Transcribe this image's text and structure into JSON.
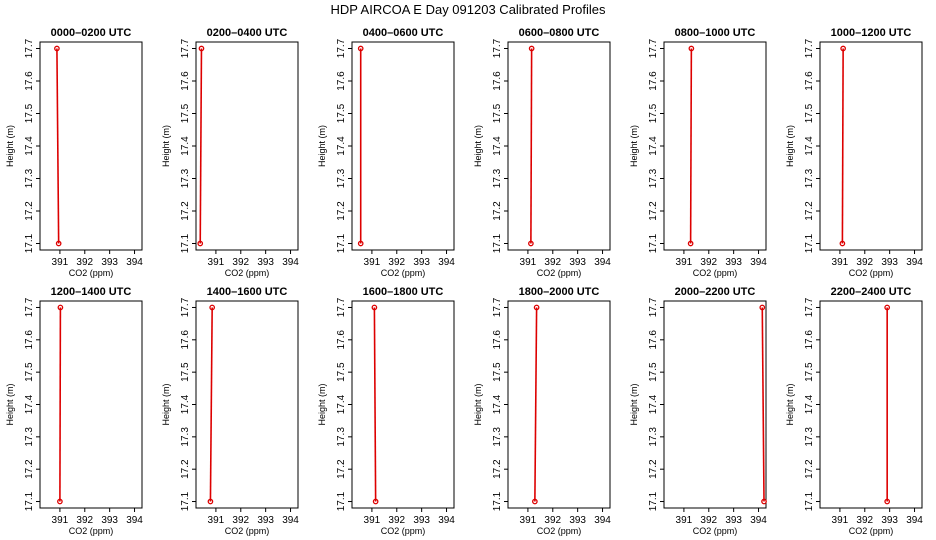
{
  "title": "HDP AIRCOA E  Day 091203  Calibrated Profiles",
  "colors": {
    "profile": "#dd0000",
    "axis": "#000000"
  },
  "chart_data": {
    "type": "line",
    "xlabel": "CO2 (ppm)",
    "ylabel": "Height (m)",
    "xlim": [
      390.2,
      394.3
    ],
    "ylim": [
      17.08,
      17.72
    ],
    "xticks": [
      "391",
      "392",
      "393",
      "394"
    ],
    "yticks": [
      "17.1",
      "17.2",
      "17.3",
      "17.4",
      "17.5",
      "17.6",
      "17.7"
    ],
    "grid": false,
    "panels": [
      {
        "title": "0000–0200 UTC",
        "points": [
          [
            390.88,
            17.7
          ],
          [
            390.95,
            17.1
          ]
        ]
      },
      {
        "title": "0200–0400 UTC",
        "points": [
          [
            390.42,
            17.7
          ],
          [
            390.37,
            17.1
          ]
        ]
      },
      {
        "title": "0400–0600 UTC",
        "points": [
          [
            390.55,
            17.7
          ],
          [
            390.55,
            17.1
          ]
        ]
      },
      {
        "title": "0600–0800 UTC",
        "points": [
          [
            391.15,
            17.7
          ],
          [
            391.12,
            17.1
          ]
        ]
      },
      {
        "title": "0800–1000 UTC",
        "points": [
          [
            391.3,
            17.7
          ],
          [
            391.27,
            17.1
          ]
        ]
      },
      {
        "title": "1000–1200 UTC",
        "points": [
          [
            391.13,
            17.7
          ],
          [
            391.1,
            17.1
          ]
        ]
      },
      {
        "title": "1200–1400 UTC",
        "points": [
          [
            391.02,
            17.7
          ],
          [
            391.0,
            17.1
          ]
        ]
      },
      {
        "title": "1400–1600 UTC",
        "points": [
          [
            390.85,
            17.7
          ],
          [
            390.78,
            17.1
          ]
        ]
      },
      {
        "title": "1600–1800 UTC",
        "points": [
          [
            391.1,
            17.7
          ],
          [
            391.15,
            17.1
          ]
        ]
      },
      {
        "title": "1800–2000 UTC",
        "points": [
          [
            391.35,
            17.7
          ],
          [
            391.28,
            17.1
          ]
        ]
      },
      {
        "title": "2000–2200 UTC",
        "points": [
          [
            394.15,
            17.7
          ],
          [
            394.22,
            17.1
          ]
        ]
      },
      {
        "title": "2200–2400 UTC",
        "points": [
          [
            392.9,
            17.7
          ],
          [
            392.9,
            17.1
          ]
        ]
      }
    ]
  }
}
